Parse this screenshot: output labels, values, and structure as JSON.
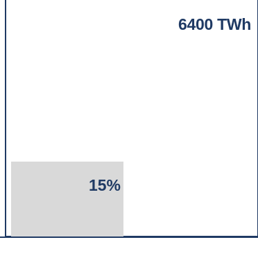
{
  "chart_data": {
    "type": "proportional-area",
    "total": {
      "value": 6400,
      "unit": "TWh",
      "label": "6400 TWh"
    },
    "share": {
      "fraction": 0.15,
      "label": "15%"
    },
    "colors": {
      "outline": "#1f3a64",
      "share_fill": "#d9d9d9",
      "background": "#ffffff",
      "label_text": "#1f3a64"
    }
  }
}
